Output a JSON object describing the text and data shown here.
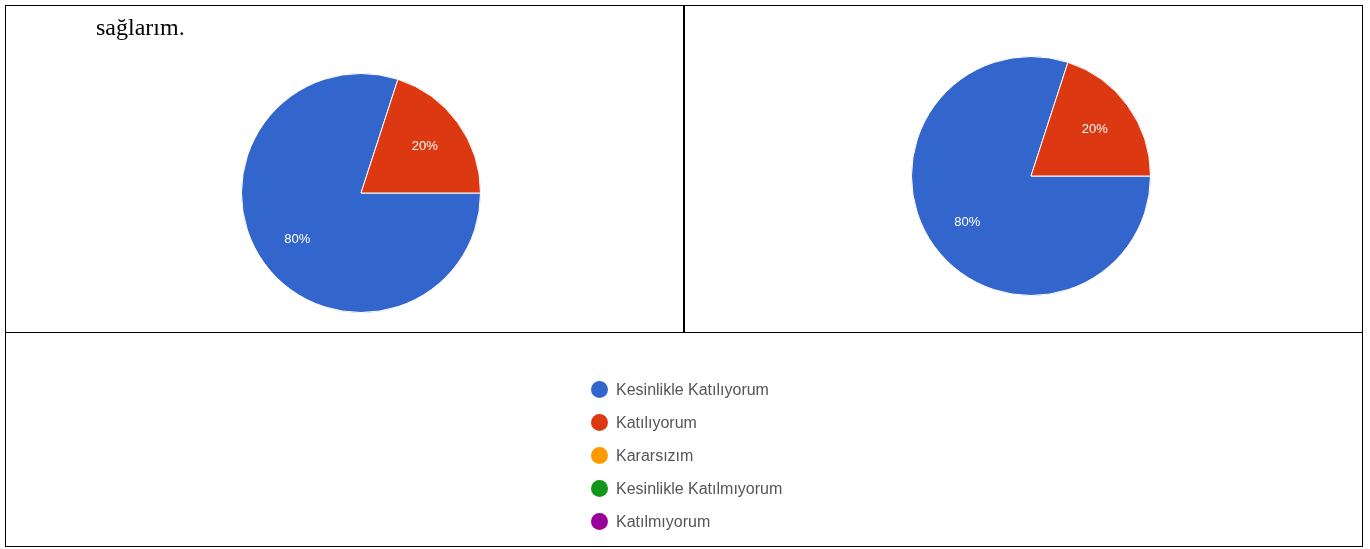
{
  "chart_data": [
    {
      "type": "pie",
      "categories": [
        "Kesinlikle Katılıyorum",
        "Katılıyorum",
        "Kararsızım",
        "Kesinlikle Katılmıyorum",
        "Katılmıyorum"
      ],
      "values": [
        80,
        20,
        0,
        0,
        0
      ],
      "value_labels": [
        "80%",
        "20%",
        null,
        null,
        null
      ],
      "colors": [
        "#3366cc",
        "#dc3912",
        "#ff9900",
        "#109618",
        "#990099"
      ],
      "legend": "bottom",
      "annotations": [
        "sağlarım."
      ]
    },
    {
      "type": "pie",
      "categories": [
        null,
        null,
        null,
        null,
        null
      ],
      "values": [
        80,
        20,
        0,
        0,
        0
      ],
      "value_labels": [
        "80%",
        "20%",
        null,
        null,
        null
      ],
      "colors": [
        "#3366cc",
        "#dc3912",
        "#ff9900",
        "#109618",
        "#990099"
      ]
    }
  ]
}
